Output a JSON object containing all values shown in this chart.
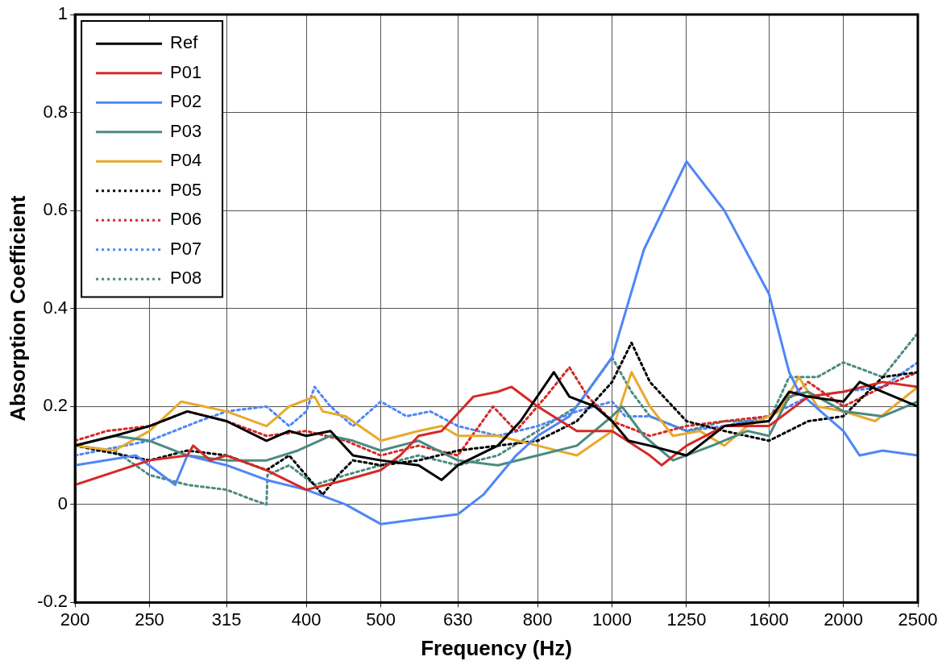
{
  "chart_data": {
    "type": "line",
    "xlabel": "Frequency (Hz)",
    "ylabel": "Absorption Coefficient",
    "log": "x",
    "xlim": [
      200,
      2500
    ],
    "xticks": [
      200,
      250,
      315,
      400,
      500,
      630,
      800,
      1000,
      1250,
      1600,
      2000,
      2500
    ],
    "ylim": [
      -0.2,
      1
    ],
    "yticks": [
      -0.2,
      0,
      0.2,
      0.4,
      0.6,
      0.8,
      1
    ],
    "grid": true,
    "legend": "top left",
    "marker": "none",
    "series": [
      {
        "name": "Ref",
        "color": "#000000",
        "line_style": "solid",
        "x": [
          200,
          225,
          250,
          280,
          315,
          355,
          380,
          400,
          430,
          460,
          500,
          560,
          600,
          630,
          710,
          760,
          840,
          880,
          950,
          1000,
          1050,
          1120,
          1250,
          1400,
          1600,
          1700,
          1800,
          2000,
          2100,
          2250,
          2500
        ],
        "values": [
          0.12,
          0.14,
          0.16,
          0.19,
          0.17,
          0.13,
          0.15,
          0.14,
          0.15,
          0.1,
          0.09,
          0.08,
          0.05,
          0.08,
          0.12,
          0.17,
          0.27,
          0.22,
          0.2,
          0.17,
          0.13,
          0.12,
          0.1,
          0.16,
          0.17,
          0.23,
          0.22,
          0.21,
          0.25,
          0.23,
          0.2
        ]
      },
      {
        "name": "P01",
        "color": "#d42a27",
        "line_style": "solid",
        "x": [
          200,
          250,
          280,
          285,
          300,
          315,
          355,
          400,
          450,
          500,
          530,
          560,
          600,
          660,
          710,
          740,
          800,
          900,
          1000,
          1120,
          1160,
          1250,
          1400,
          1600,
          1800,
          2000,
          2250,
          2500
        ],
        "values": [
          0.04,
          0.09,
          0.1,
          0.12,
          0.09,
          0.1,
          0.07,
          0.03,
          0.05,
          0.07,
          0.1,
          0.14,
          0.15,
          0.22,
          0.23,
          0.24,
          0.2,
          0.15,
          0.15,
          0.1,
          0.08,
          0.12,
          0.16,
          0.16,
          0.22,
          0.23,
          0.25,
          0.24
        ]
      },
      {
        "name": "P02",
        "color": "#4f86f7",
        "line_style": "solid",
        "x": [
          200,
          240,
          270,
          280,
          315,
          355,
          400,
          450,
          500,
          560,
          630,
          680,
          750,
          800,
          880,
          1000,
          1100,
          1250,
          1400,
          1600,
          1700,
          1750,
          1900,
          2000,
          2100,
          2250,
          2500
        ],
        "values": [
          0.08,
          0.1,
          0.04,
          0.1,
          0.08,
          0.05,
          0.03,
          0.0,
          -0.04,
          -0.03,
          -0.02,
          0.02,
          0.1,
          0.14,
          0.18,
          0.3,
          0.52,
          0.7,
          0.6,
          0.43,
          0.27,
          0.23,
          0.18,
          0.15,
          0.1,
          0.11,
          0.1
        ]
      },
      {
        "name": "P03",
        "color": "#4b8a80",
        "line_style": "solid",
        "x": [
          200,
          225,
          250,
          280,
          315,
          355,
          390,
          430,
          460,
          500,
          560,
          630,
          710,
          800,
          900,
          1000,
          1030,
          1100,
          1200,
          1350,
          1500,
          1600,
          1700,
          1800,
          2000,
          2250,
          2500
        ],
        "values": [
          0.12,
          0.14,
          0.13,
          0.1,
          0.09,
          0.09,
          0.11,
          0.14,
          0.13,
          0.11,
          0.13,
          0.09,
          0.08,
          0.1,
          0.12,
          0.18,
          0.2,
          0.14,
          0.09,
          0.12,
          0.15,
          0.14,
          0.22,
          0.23,
          0.19,
          0.18,
          0.21
        ]
      },
      {
        "name": "P04",
        "color": "#e8a92b",
        "line_style": "solid",
        "x": [
          200,
          225,
          250,
          275,
          315,
          355,
          380,
          410,
          420,
          450,
          500,
          560,
          600,
          630,
          710,
          800,
          900,
          1000,
          1060,
          1120,
          1200,
          1300,
          1400,
          1500,
          1650,
          1750,
          1850,
          2000,
          2200,
          2500
        ],
        "values": [
          0.12,
          0.11,
          0.15,
          0.21,
          0.19,
          0.16,
          0.2,
          0.22,
          0.19,
          0.18,
          0.13,
          0.15,
          0.16,
          0.14,
          0.14,
          0.12,
          0.1,
          0.15,
          0.27,
          0.2,
          0.14,
          0.15,
          0.12,
          0.16,
          0.19,
          0.26,
          0.2,
          0.19,
          0.17,
          0.24
        ]
      },
      {
        "name": "P05",
        "color": "#000000",
        "line_style": "dotted",
        "x": [
          200,
          250,
          280,
          315,
          355,
          380,
          420,
          440,
          460,
          500,
          560,
          630,
          710,
          800,
          900,
          1000,
          1060,
          1120,
          1250,
          1400,
          1600,
          1800,
          2000,
          2250,
          2500
        ],
        "values": [
          0.12,
          0.09,
          0.11,
          0.1,
          0.07,
          0.1,
          0.02,
          0.06,
          0.09,
          0.08,
          0.09,
          0.11,
          0.12,
          0.13,
          0.17,
          0.25,
          0.33,
          0.25,
          0.17,
          0.15,
          0.13,
          0.17,
          0.18,
          0.26,
          0.27
        ]
      },
      {
        "name": "P06",
        "color": "#d42a27",
        "line_style": "dotted",
        "x": [
          200,
          220,
          250,
          280,
          315,
          355,
          400,
          450,
          500,
          560,
          630,
          700,
          750,
          820,
          880,
          930,
          1000,
          1120,
          1250,
          1400,
          1600,
          1800,
          2000,
          2250,
          2500
        ],
        "values": [
          0.13,
          0.15,
          0.16,
          0.19,
          0.17,
          0.14,
          0.15,
          0.13,
          0.1,
          0.12,
          0.1,
          0.2,
          0.15,
          0.22,
          0.28,
          0.22,
          0.17,
          0.14,
          0.16,
          0.17,
          0.18,
          0.25,
          0.2,
          0.24,
          0.27
        ]
      },
      {
        "name": "P07",
        "color": "#4f86f7",
        "line_style": "dotted",
        "x": [
          200,
          250,
          290,
          315,
          355,
          380,
          400,
          410,
          430,
          460,
          500,
          540,
          580,
          630,
          710,
          800,
          900,
          1000,
          1040,
          1120,
          1250,
          1400,
          1600,
          1800,
          2000,
          2250,
          2500
        ],
        "values": [
          0.1,
          0.13,
          0.17,
          0.19,
          0.2,
          0.16,
          0.19,
          0.24,
          0.2,
          0.16,
          0.21,
          0.18,
          0.19,
          0.16,
          0.14,
          0.16,
          0.19,
          0.21,
          0.18,
          0.18,
          0.15,
          0.16,
          0.18,
          0.22,
          0.23,
          0.24,
          0.29
        ]
      },
      {
        "name": "P08",
        "color": "#4b8a80",
        "line_style": "dotted",
        "x": [
          200,
          225,
          250,
          280,
          315,
          340,
          355,
          356,
          380,
          410,
          450,
          500,
          560,
          630,
          710,
          800,
          900,
          1000,
          1060,
          1120,
          1250,
          1400,
          1600,
          1700,
          1850,
          2000,
          2250,
          2500
        ],
        "values": [
          0.12,
          0.11,
          0.06,
          0.04,
          0.03,
          0.01,
          0.0,
          0.06,
          0.08,
          0.04,
          0.06,
          0.08,
          0.1,
          0.08,
          0.1,
          0.15,
          0.2,
          0.3,
          0.23,
          0.18,
          0.15,
          0.17,
          0.17,
          0.26,
          0.26,
          0.29,
          0.26,
          0.35
        ]
      }
    ]
  }
}
